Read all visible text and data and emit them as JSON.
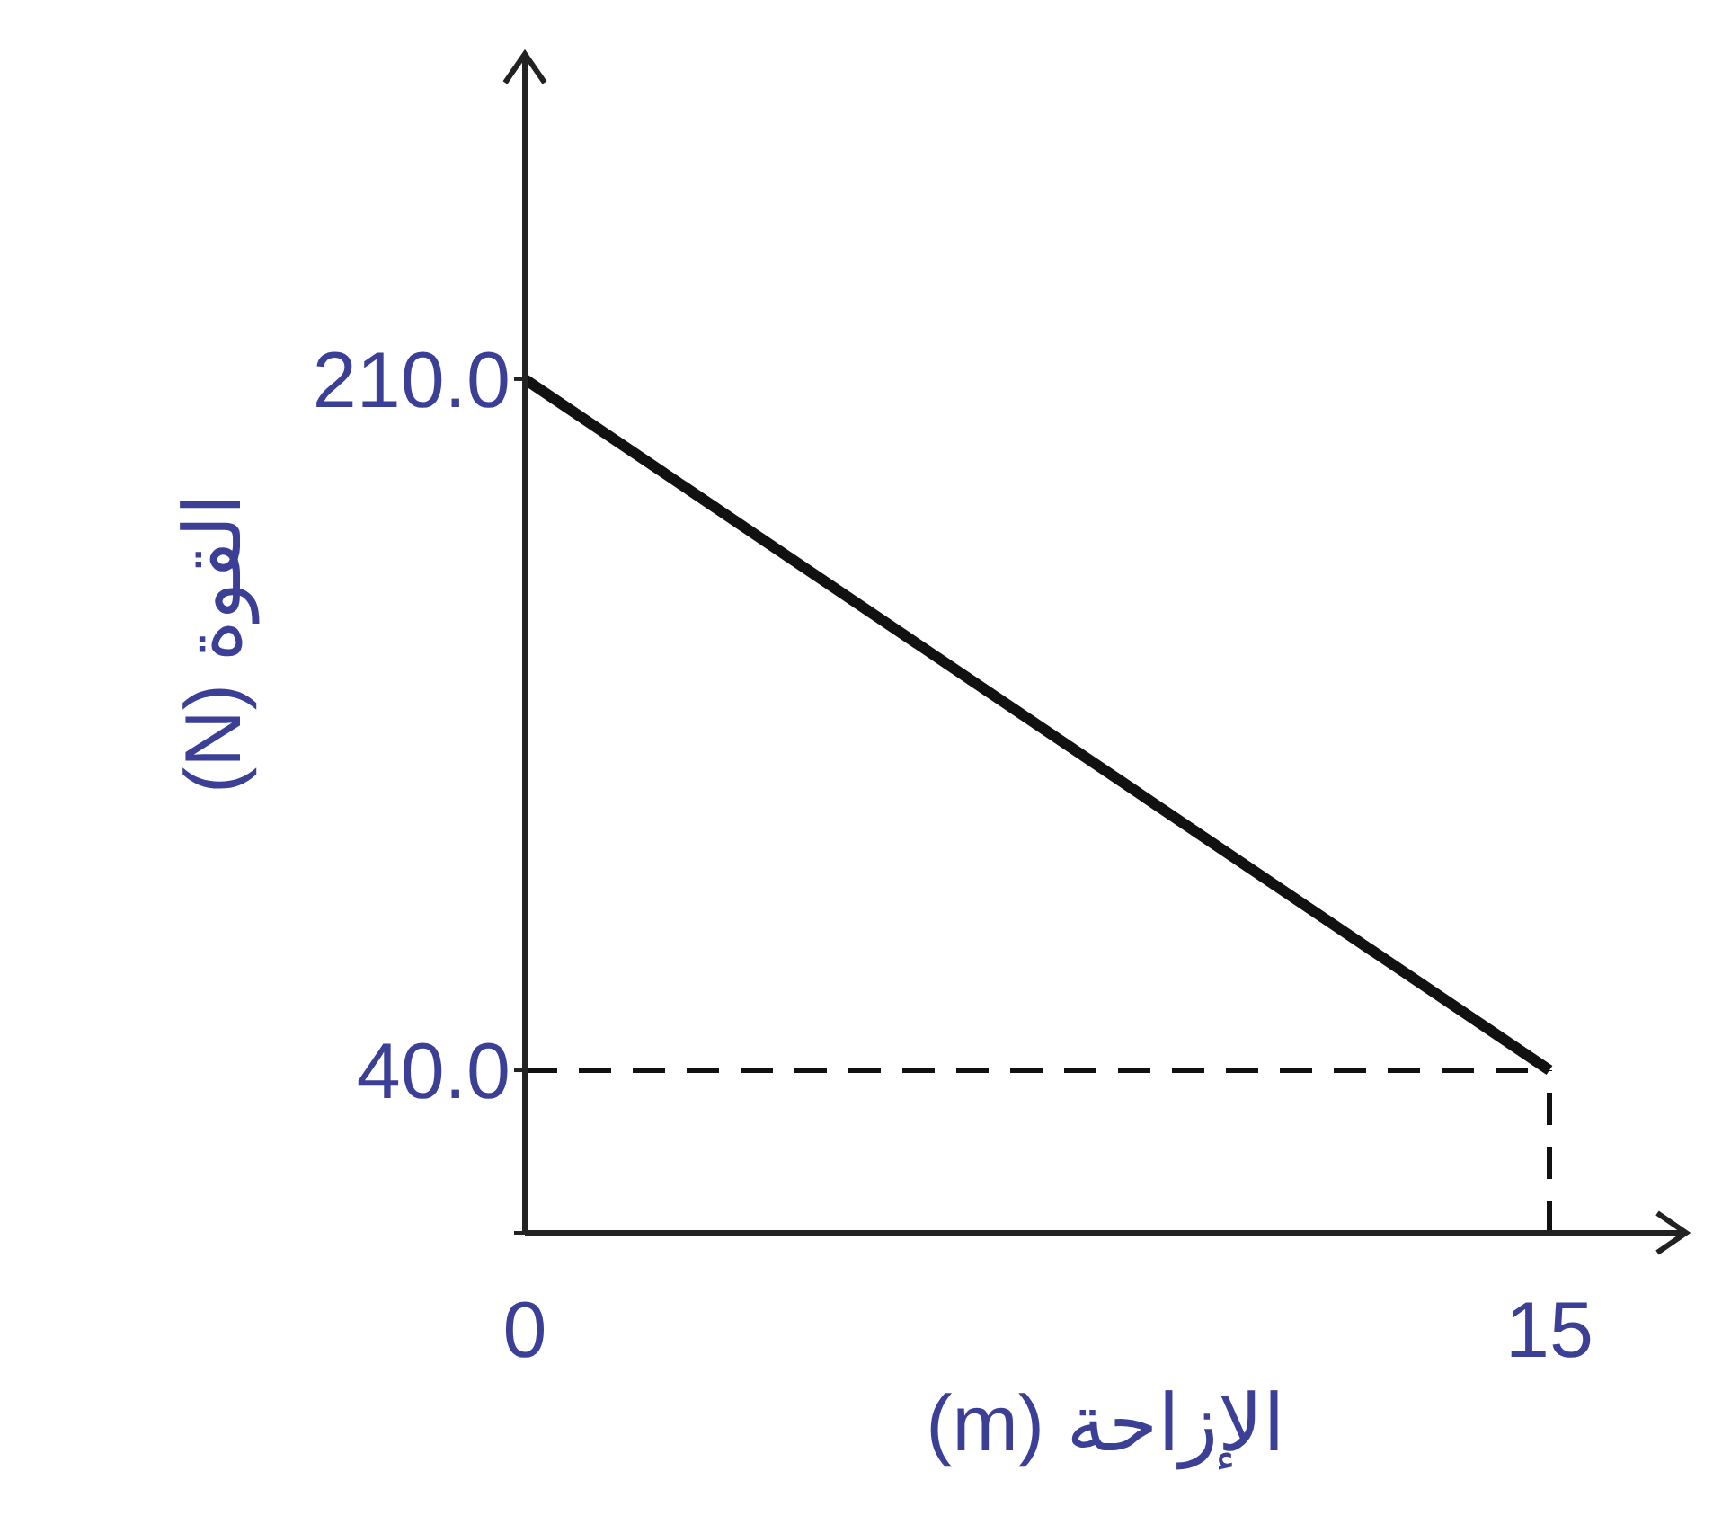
{
  "chart_data": {
    "type": "line",
    "xlabel": "الإزاحة (m)",
    "ylabel": "القوة (N)",
    "series": [
      {
        "color": "#111111",
        "x": [
          0,
          15
        ],
        "values": [
          210,
          40
        ]
      }
    ],
    "xlim": [
      0,
      17
    ],
    "xticks": [
      0,
      15
    ],
    "ylim": [
      0,
      290
    ],
    "yticks": [
      {
        "value": 0,
        "label": null
      },
      {
        "value": 40,
        "label": "40.0"
      },
      {
        "value": 210,
        "label": "210.0"
      }
    ],
    "ref_lines": [
      {
        "axis": "y",
        "value": 40,
        "color": "#111111",
        "line_style": "dashed"
      },
      {
        "axis": "x",
        "value": 15,
        "color": "#111111",
        "line_style": "dashed"
      }
    ],
    "grid": false,
    "marker": "none",
    "line_style": "solid"
  }
}
